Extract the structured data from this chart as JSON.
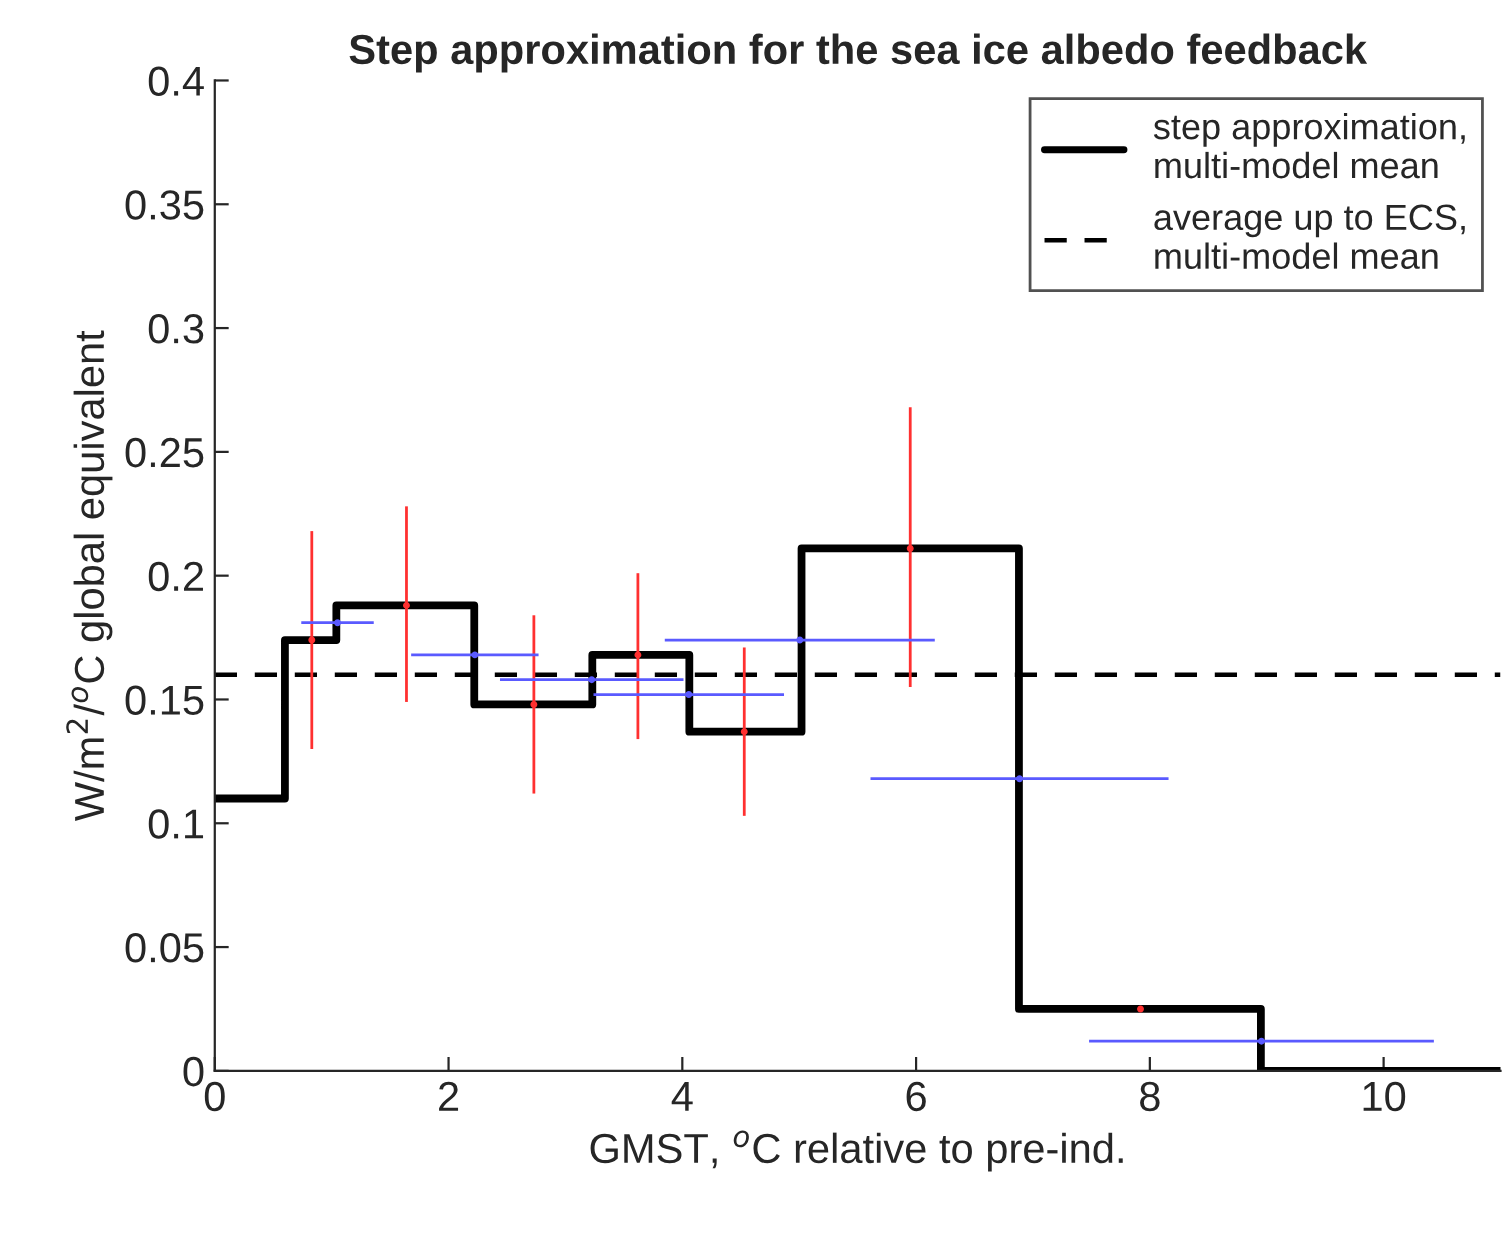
{
  "chart_data": {
    "type": "step",
    "title": "Step approximation for the sea ice albedo feedback",
    "xlabel": "GMST, $^{o}$C relative to pre-ind.",
    "ylabel": "W/m$^{2}$/$^{o}$C global equivalent",
    "series": [
      {
        "name": "step approximation,\nmulti-model mean",
        "color": "#000000",
        "x": [
          0,
          0.6,
          1.04,
          2.22,
          3.23,
          4.06,
          5.02,
          6.88,
          8.95,
          11
        ],
        "values": [
          0.11,
          0.174,
          0.188,
          0.148,
          0.168,
          0.137,
          0.211,
          0.025,
          0,
          0
        ]
      },
      {
        "type": "scatter",
        "marker": "circle",
        "color": "#ff3030",
        "x": [
          0.83,
          1.64,
          2.73,
          3.62,
          4.53,
          5.95,
          7.92
        ],
        "values": [
          0.174,
          0.188,
          0.148,
          0.168,
          0.137,
          0.211,
          0.025
        ],
        "errors": [
          [
            0.13,
            0.218
          ],
          [
            0.149,
            0.228
          ],
          [
            0.112,
            0.184
          ],
          [
            0.134,
            0.201
          ],
          [
            0.103,
            0.171
          ],
          [
            0.155,
            0.268
          ],
          [
            0.024,
            0.026
          ]
        ]
      },
      {
        "type": "scatter",
        "marker": "circle",
        "color": "#5a5aff",
        "x": [
          1.05,
          2.225,
          3.225,
          4.055,
          5.005,
          6.885,
          8.955
        ],
        "values": [
          0.181,
          0.168,
          0.158,
          0.152,
          0.174,
          0.118,
          0.012
        ],
        "xerrors": [
          [
            0.74,
            1.36
          ],
          [
            1.68,
            2.77
          ],
          [
            2.44,
            4.01
          ],
          [
            3.24,
            4.87
          ],
          [
            3.85,
            6.16
          ],
          [
            5.61,
            8.16
          ],
          [
            7.48,
            10.43
          ]
        ]
      }
    ],
    "ref_lines": [
      {
        "axis": "y",
        "value": 0.16,
        "label": "average up to ECS,\nmulti-model mean",
        "color": "#000000",
        "line_style": "dashed"
      }
    ],
    "xlim": [
      0,
      11
    ],
    "ylim": [
      0,
      0.4
    ],
    "xticks": [
      0,
      2,
      4,
      6,
      8,
      10
    ],
    "yticks": [
      0,
      0.05,
      0.1,
      0.15,
      0.2,
      0.25,
      0.3,
      0.35,
      0.4
    ],
    "grid": false,
    "legend": "top right"
  }
}
